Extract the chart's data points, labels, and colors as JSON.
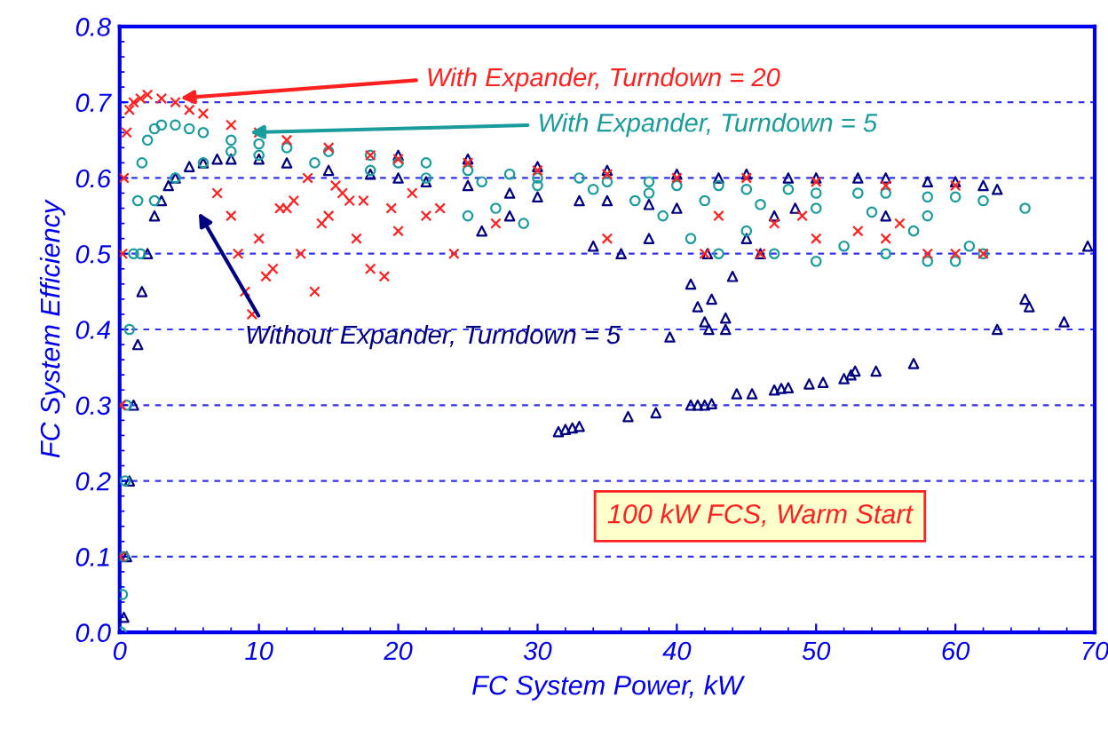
{
  "chart_data": {
    "type": "scatter",
    "xlabel": "FC System Power, kW",
    "ylabel": "FC System Efficiency",
    "xlim": [
      0,
      70
    ],
    "xticks": [
      0,
      10,
      20,
      30,
      40,
      50,
      60,
      70
    ],
    "ylim": [
      0,
      0.8
    ],
    "yticks": [
      {
        "value": 0,
        "label": "0.0"
      },
      0.1,
      0.2,
      0.3,
      0.4,
      0.5,
      0.6,
      0.7,
      0.8
    ],
    "grid": "y",
    "legend": false,
    "annotations": [
      "100 kW FCS, Warm Start"
    ],
    "series": [
      {
        "name": "Without Expander, Turndown = 5",
        "color": "#000080",
        "marker": "triangle",
        "x": [
          0.3,
          0.5,
          0.7,
          1,
          1.3,
          1.6,
          2,
          2.5,
          3,
          3.5,
          4,
          5,
          6,
          7,
          8,
          10,
          12,
          15,
          18,
          20,
          22,
          25,
          28,
          30,
          33,
          35,
          38,
          40,
          20,
          25,
          30,
          35,
          40,
          43,
          45,
          48,
          50,
          53,
          55,
          58,
          60,
          62,
          63,
          31.5,
          32,
          32.5,
          33,
          36.5,
          38.5,
          41,
          41.5,
          42,
          42.5,
          44.3,
          45.4,
          47,
          47.5,
          48,
          49.5,
          50.5,
          52,
          52.5,
          52.8,
          54.3,
          57,
          63,
          67.8,
          39.5,
          42,
          42.3,
          43.5,
          43.5,
          65,
          65.3,
          69.5,
          41,
          42.5,
          44,
          46,
          38,
          36,
          34,
          26,
          28,
          45,
          47,
          42.2,
          41.5,
          48.5,
          55
        ],
        "values": [
          0.02,
          0.1,
          0.2,
          0.3,
          0.38,
          0.45,
          0.5,
          0.55,
          0.57,
          0.59,
          0.6,
          0.615,
          0.62,
          0.625,
          0.625,
          0.625,
          0.62,
          0.61,
          0.605,
          0.6,
          0.595,
          0.59,
          0.58,
          0.575,
          0.57,
          0.57,
          0.565,
          0.56,
          0.63,
          0.625,
          0.615,
          0.61,
          0.605,
          0.6,
          0.605,
          0.6,
          0.6,
          0.6,
          0.6,
          0.595,
          0.595,
          0.59,
          0.585,
          0.265,
          0.268,
          0.27,
          0.272,
          0.285,
          0.29,
          0.3,
          0.3,
          0.3,
          0.302,
          0.315,
          0.315,
          0.32,
          0.322,
          0.323,
          0.328,
          0.33,
          0.335,
          0.34,
          0.345,
          0.345,
          0.355,
          0.4,
          0.41,
          0.39,
          0.41,
          0.4,
          0.4,
          0.415,
          0.44,
          0.43,
          0.51,
          0.46,
          0.44,
          0.47,
          0.5,
          0.52,
          0.5,
          0.51,
          0.53,
          0.55,
          0.52,
          0.55,
          0.5,
          0.43,
          0.56,
          0.55
        ]
      },
      {
        "name": "With Expander, Turndown = 5",
        "color": "#1a9c9c",
        "marker": "circle",
        "x": [
          0.1,
          0.2,
          0.3,
          0.4,
          0.5,
          0.7,
          1,
          1.3,
          1.6,
          2,
          2.5,
          3,
          4,
          5,
          6,
          8,
          10,
          12,
          15,
          18,
          20,
          22,
          25,
          28,
          30,
          33,
          35,
          38,
          40,
          43,
          45,
          48,
          50,
          53,
          55,
          58,
          60,
          62,
          1.5,
          2.5,
          4,
          6,
          8,
          10,
          14,
          18,
          22,
          26,
          30,
          34,
          38,
          42,
          46,
          50,
          54,
          58,
          25,
          27,
          29,
          41,
          43,
          45,
          47,
          50,
          52,
          55,
          57,
          58,
          60,
          61,
          62,
          65,
          37,
          39
        ],
        "values": [
          0,
          0.05,
          0.1,
          0.2,
          0.3,
          0.4,
          0.5,
          0.57,
          0.62,
          0.65,
          0.665,
          0.67,
          0.67,
          0.665,
          0.66,
          0.65,
          0.645,
          0.64,
          0.635,
          0.63,
          0.62,
          0.62,
          0.61,
          0.605,
          0.6,
          0.6,
          0.595,
          0.595,
          0.59,
          0.59,
          0.585,
          0.585,
          0.58,
          0.58,
          0.58,
          0.575,
          0.575,
          0.57,
          0.5,
          0.57,
          0.6,
          0.62,
          0.635,
          0.63,
          0.62,
          0.61,
          0.6,
          0.595,
          0.59,
          0.585,
          0.58,
          0.57,
          0.565,
          0.56,
          0.555,
          0.55,
          0.55,
          0.56,
          0.54,
          0.52,
          0.5,
          0.53,
          0.5,
          0.49,
          0.51,
          0.5,
          0.53,
          0.49,
          0.49,
          0.51,
          0.5,
          0.56,
          0.57,
          0.55
        ]
      },
      {
        "name": "With Expander, Turndown = 20",
        "color": "#ff2020",
        "marker": "cross",
        "x": [
          0.05,
          0.1,
          0.2,
          0.3,
          0.5,
          0.7,
          1,
          1.5,
          2,
          3,
          4,
          5,
          6,
          8,
          10,
          12,
          15,
          18,
          20,
          25,
          30,
          35,
          40,
          45,
          50,
          55,
          60,
          7,
          8,
          8.5,
          9,
          10,
          11,
          12,
          13,
          14,
          15,
          16,
          17,
          18,
          19,
          20,
          22,
          24,
          27,
          35,
          42,
          46,
          50,
          55,
          58,
          60,
          62,
          9.5,
          10.5,
          12.5,
          14.5,
          16.5,
          19.5,
          11.5,
          13.5,
          15.5,
          17.5,
          21,
          23,
          43,
          47,
          49,
          53,
          56
        ],
        "values": [
          0.1,
          0.3,
          0.5,
          0.6,
          0.66,
          0.69,
          0.7,
          0.705,
          0.71,
          0.705,
          0.7,
          0.69,
          0.685,
          0.67,
          0.66,
          0.65,
          0.64,
          0.63,
          0.625,
          0.62,
          0.61,
          0.605,
          0.6,
          0.6,
          0.595,
          0.59,
          0.59,
          0.58,
          0.55,
          0.5,
          0.45,
          0.52,
          0.48,
          0.56,
          0.5,
          0.45,
          0.55,
          0.58,
          0.52,
          0.48,
          0.47,
          0.53,
          0.55,
          0.5,
          0.54,
          0.52,
          0.5,
          0.5,
          0.52,
          0.52,
          0.5,
          0.5,
          0.5,
          0.42,
          0.47,
          0.57,
          0.54,
          0.57,
          0.56,
          0.56,
          0.6,
          0.59,
          0.57,
          0.58,
          0.56,
          0.55,
          0.54,
          0.55,
          0.53,
          0.54
        ]
      }
    ]
  }
}
